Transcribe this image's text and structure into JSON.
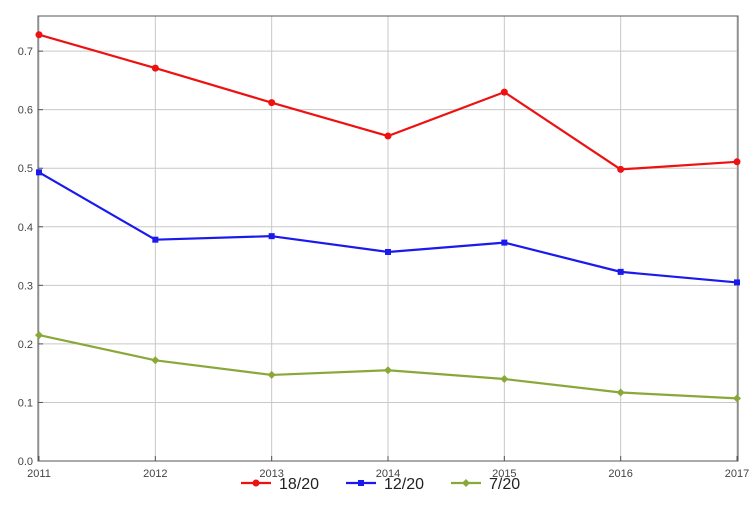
{
  "chart_data": {
    "type": "line",
    "x": [
      2011,
      2012,
      2013,
      2014,
      2015,
      2016,
      2017
    ],
    "xticks": [
      "2011",
      "2012",
      "2013",
      "2014",
      "2015",
      "2016",
      "2017"
    ],
    "yticks": [
      "0.0",
      "0.1",
      "0.2",
      "0.3",
      "0.4",
      "0.5",
      "0.6",
      "0.7"
    ],
    "ylim": [
      0,
      0.76
    ],
    "grid": true,
    "legend_position": "bottom-center",
    "series": [
      {
        "name": "18/20",
        "color": "#ee1111",
        "marker": "circle",
        "values": [
          0.728,
          0.671,
          0.612,
          0.555,
          0.63,
          0.498,
          0.511
        ]
      },
      {
        "name": "12/20",
        "color": "#1a1aee",
        "marker": "square",
        "values": [
          0.493,
          0.378,
          0.384,
          0.357,
          0.373,
          0.323,
          0.305
        ]
      },
      {
        "name": "7/20",
        "color": "#8aa83a",
        "marker": "diamond",
        "values": [
          0.215,
          0.172,
          0.147,
          0.155,
          0.14,
          0.117,
          0.107
        ]
      }
    ]
  }
}
